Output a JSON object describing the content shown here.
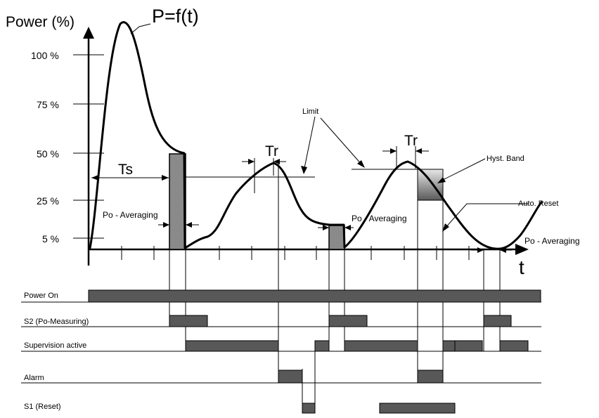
{
  "chart": {
    "y_axis_title": "Power (%)",
    "x_axis_title": "t",
    "function_label": "P=f(t)",
    "y_ticks": [
      "100 %",
      "75 %",
      "50 %",
      "25 %",
      "5 %"
    ]
  },
  "annotations": {
    "ts": "Ts",
    "tr_1": "Tr",
    "tr_2": "Tr",
    "limit": "Limit",
    "hyst_band": "Hyst. Band",
    "auto_reset": "Auto. Reset",
    "po_averaging_1": "Po - Averaging",
    "po_averaging_2": "Po - Averaging",
    "po_averaging_3": "Po - Averaging"
  },
  "timing_rows": [
    {
      "label": "Power On"
    },
    {
      "label": "S2 (Po-Measuring)"
    },
    {
      "label": "Supervision active"
    },
    {
      "label": "Alarm"
    },
    {
      "label": "S1 (Reset)"
    }
  ],
  "colors": {
    "signal_bar": "#585858",
    "averaging_fill": "#8a8a8a",
    "hyst_gradient_top": "#e6e6e6",
    "hyst_gradient_bottom": "#5a5a5a"
  }
}
